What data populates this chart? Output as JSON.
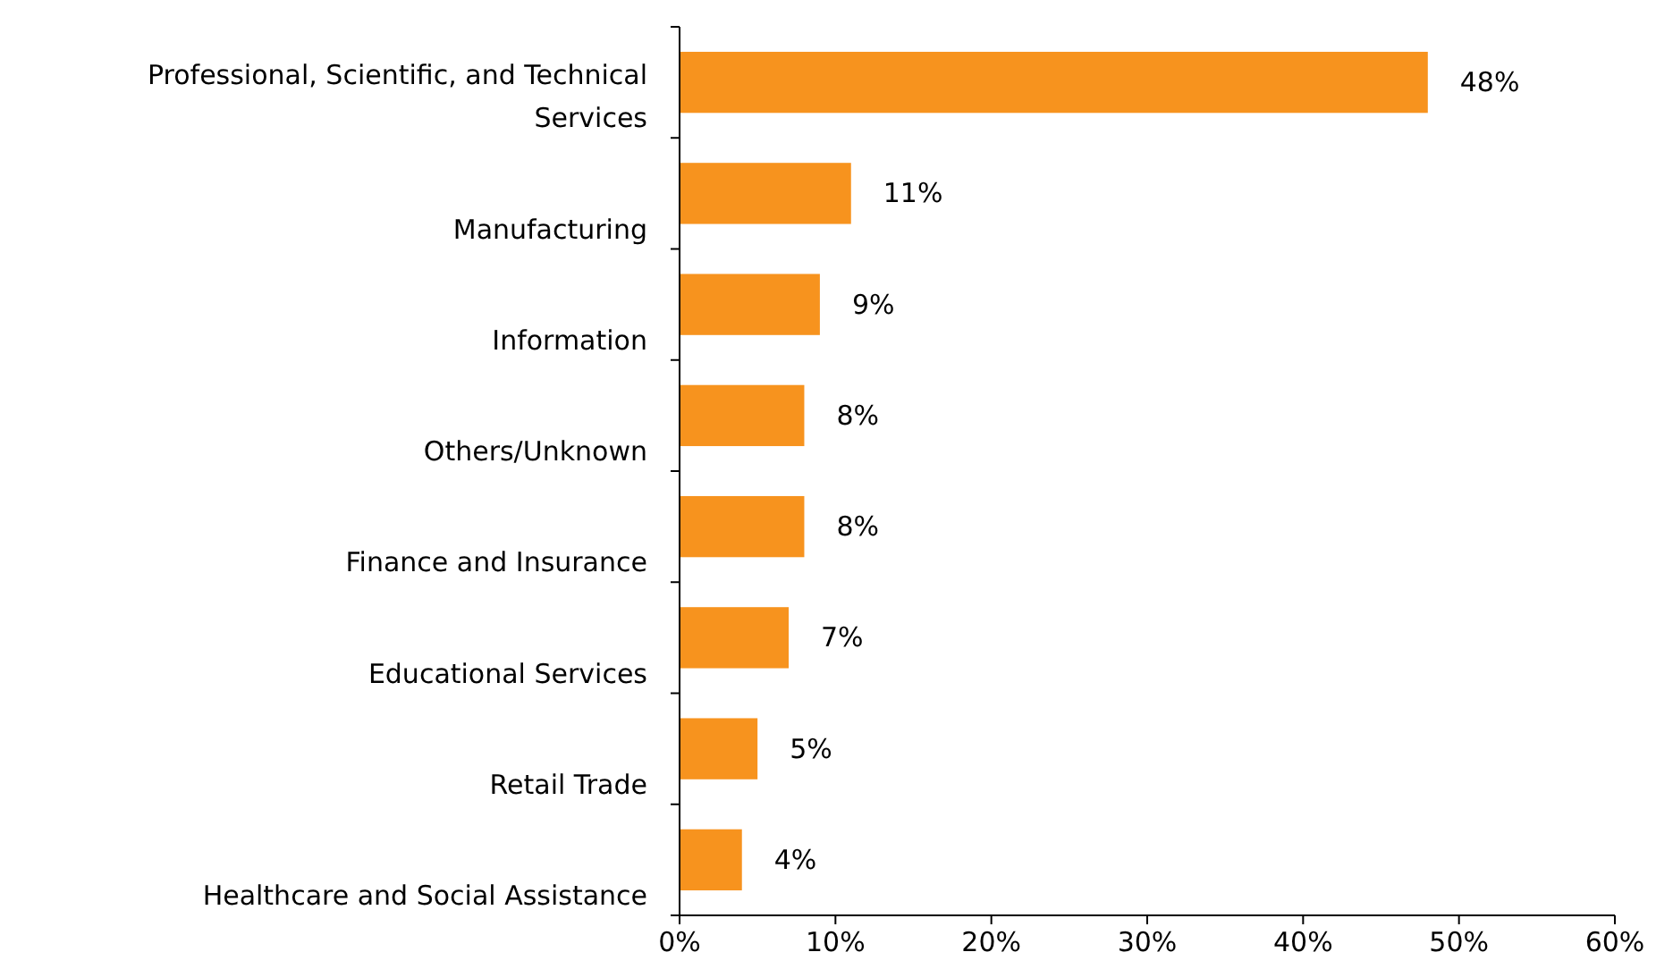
{
  "chart_data": {
    "type": "bar",
    "orientation": "horizontal",
    "categories": [
      "Professional, Scientific, and Technical Services",
      "Manufacturing",
      "Information",
      "Others/Unknown",
      "Finance and Insurance",
      "Educational Services",
      "Retail Trade",
      "Healthcare and Social Assistance"
    ],
    "values": [
      48,
      11,
      9,
      8,
      8,
      7,
      5,
      4
    ],
    "value_labels": [
      "48%",
      "11%",
      "9%",
      "8%",
      "8%",
      "7%",
      "5%",
      "4%"
    ],
    "color": "#f7931e",
    "xlim": [
      0,
      60
    ],
    "xticks": [
      {
        "value": 0,
        "label": "0%"
      },
      {
        "value": 10,
        "label": "10%"
      },
      {
        "value": 20,
        "label": "20%"
      },
      {
        "value": 30,
        "label": "30%"
      },
      {
        "value": 40,
        "label": "40%"
      },
      {
        "value": 50,
        "label": "50%"
      },
      {
        "value": 60,
        "label": "60%"
      }
    ],
    "grid": false
  }
}
